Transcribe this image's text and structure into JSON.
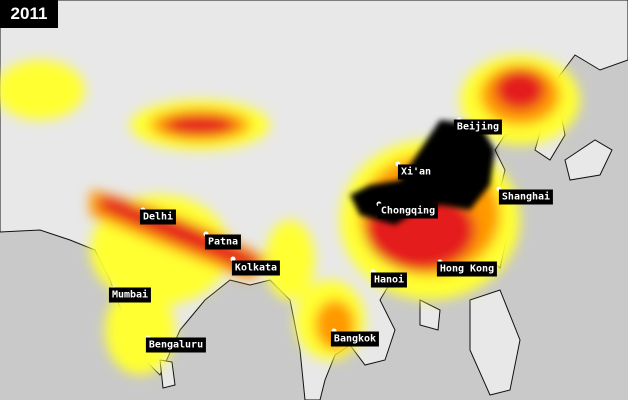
{
  "year_label": "2011",
  "colors": {
    "ocean": "#c9c9c9",
    "land": "#e6e6e6",
    "low": "#ffff33",
    "mid": "#ff9900",
    "high": "#e41a1c",
    "extreme": "#000000"
  },
  "cities": [
    {
      "name": "Beijing"
    },
    {
      "name": "Xi'an"
    },
    {
      "name": "Chongqing"
    },
    {
      "name": "Shanghai"
    },
    {
      "name": "Hong Kong"
    },
    {
      "name": "Hanoi"
    },
    {
      "name": "Delhi"
    },
    {
      "name": "Patna"
    },
    {
      "name": "Kolkata"
    },
    {
      "name": "Mumbai"
    },
    {
      "name": "Bengaluru"
    },
    {
      "name": "Bangkok"
    }
  ]
}
